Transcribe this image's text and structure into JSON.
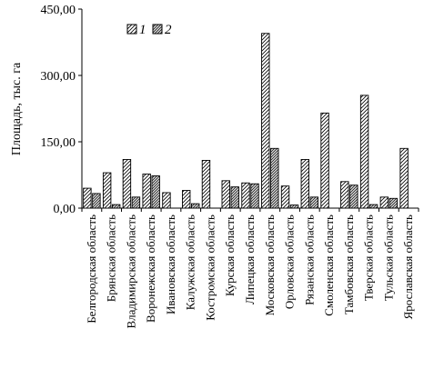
{
  "chart_data": {
    "type": "bar",
    "title": "",
    "xlabel": "",
    "ylabel": "Площадь, тыс. га",
    "ylim": [
      0,
      450
    ],
    "yticks": [
      "0,00",
      "150,00",
      "300,00",
      "450,00"
    ],
    "grid": false,
    "legend_position": "top-left",
    "categories": [
      "Белгородская область",
      "Брянская область",
      "Владимирская  область",
      "Воронежская область",
      "Ивановская область",
      "Калужская  область",
      "Костромская область",
      "Курская  область",
      "Липецкая  область",
      "Московская  область",
      "Орловская область",
      "Рязанская  область",
      "Смоленская область",
      "Тамбовская область",
      "Тверская  область",
      "Тульская  область",
      "Ярославская область"
    ],
    "series": [
      {
        "name": "1",
        "pattern": "light-hatch",
        "values": [
          45,
          80,
          110,
          77,
          35,
          40,
          108,
          62,
          57,
          395,
          50,
          110,
          215,
          60,
          255,
          25,
          135
        ]
      },
      {
        "name": "2",
        "pattern": "dense-hatch",
        "values": [
          33,
          8,
          25,
          73,
          0,
          10,
          0,
          48,
          55,
          135,
          7,
          25,
          0,
          52,
          8,
          22,
          0
        ]
      }
    ]
  }
}
